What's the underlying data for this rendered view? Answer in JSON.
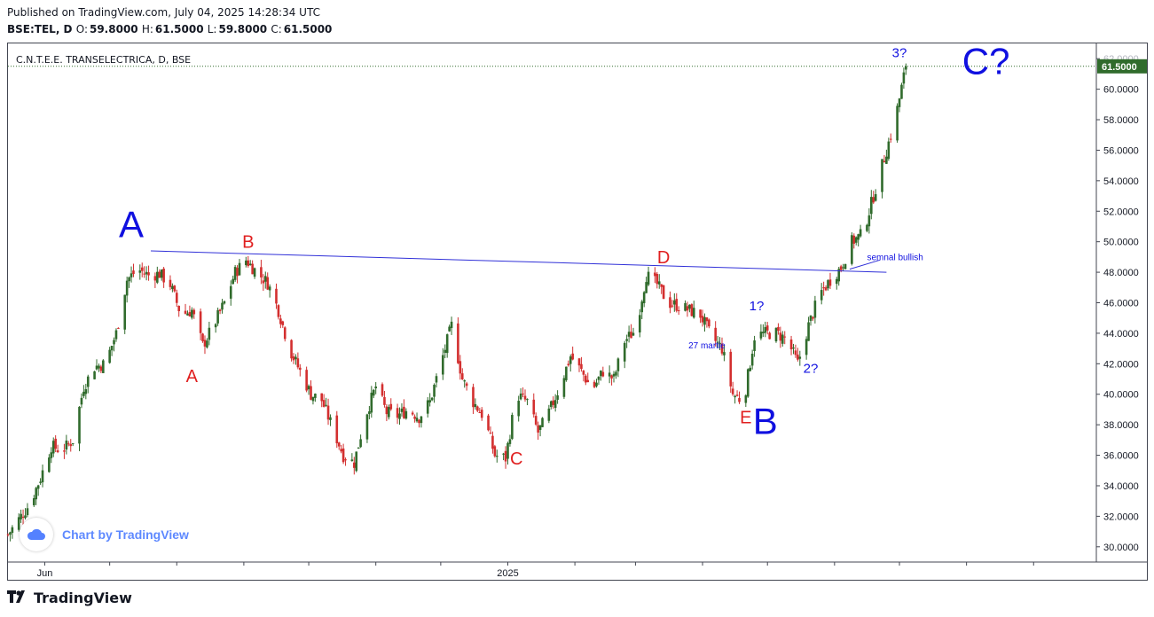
{
  "header": {
    "published": "Published on TradingView.com, July 04, 2025 14:28:34 UTC",
    "symbol": "BSE:TEL, D",
    "o_label": "O:",
    "o_value": "59.8000",
    "h_label": "H:",
    "h_value": "61.5000",
    "l_label": "L:",
    "l_value": "59.8000",
    "c_label": "C:",
    "c_value": "61.5000"
  },
  "chart_title": "C.N.T.E.E. TRANSELECTRICA, D, BSE",
  "watermark": "Chart by TradingView",
  "footer_brand": "TradingView",
  "colors": {
    "up": "#306b2c",
    "down": "#d32f2f",
    "trendline": "#3030d8",
    "wave_blue": "#1010e0",
    "wave_red": "#e02020",
    "last_price_bg": "#306b2c"
  },
  "chart_data": {
    "type": "candlestick",
    "title": "C.N.T.E.E. TRANSELECTRICA, D, BSE",
    "ylim": [
      29.0,
      63.0
    ],
    "y_ticks": [
      "30.0000",
      "32.0000",
      "34.0000",
      "36.0000",
      "38.0000",
      "40.0000",
      "42.0000",
      "44.0000",
      "46.0000",
      "48.0000",
      "50.0000",
      "52.0000",
      "54.0000",
      "56.0000",
      "58.0000",
      "60.0000",
      "62.0000"
    ],
    "x_labels": [
      {
        "label": "Jun",
        "date": "2024-06-01"
      },
      {
        "label": "2025",
        "date": "2025-01-01"
      }
    ],
    "x_range": [
      "2024-05-15",
      "2025-09-30"
    ],
    "last_price": "61.5000",
    "close_path": [
      [
        "2024-05-15",
        30.8
      ],
      [
        "2024-05-20",
        31.8
      ],
      [
        "2024-05-25",
        32.8
      ],
      [
        "2024-05-30",
        34.5
      ],
      [
        "2024-06-04",
        36.6
      ],
      [
        "2024-06-09",
        36.3
      ],
      [
        "2024-06-14",
        37.0
      ],
      [
        "2024-06-19",
        40.5
      ],
      [
        "2024-06-24",
        41.8
      ],
      [
        "2024-06-29",
        42.0
      ],
      [
        "2024-07-04",
        44.0
      ],
      [
        "2024-07-09",
        47.5
      ],
      [
        "2024-07-14",
        48.2
      ],
      [
        "2024-07-19",
        47.8
      ],
      [
        "2024-07-24",
        47.9
      ],
      [
        "2024-07-29",
        47.2
      ],
      [
        "2024-08-03",
        45.2
      ],
      [
        "2024-08-08",
        45.5
      ],
      [
        "2024-08-13",
        43.2
      ],
      [
        "2024-08-18",
        44.5
      ],
      [
        "2024-08-23",
        46.0
      ],
      [
        "2024-08-28",
        48.0
      ],
      [
        "2024-09-02",
        48.8
      ],
      [
        "2024-09-07",
        48.0
      ],
      [
        "2024-09-12",
        47.3
      ],
      [
        "2024-09-17",
        45.5
      ],
      [
        "2024-09-22",
        43.0
      ],
      [
        "2024-09-27",
        41.5
      ],
      [
        "2024-10-02",
        40.0
      ],
      [
        "2024-10-07",
        39.6
      ],
      [
        "2024-10-12",
        37.8
      ],
      [
        "2024-10-17",
        36.0
      ],
      [
        "2024-10-22",
        35.5
      ],
      [
        "2024-10-27",
        38.5
      ],
      [
        "2024-11-01",
        40.5
      ],
      [
        "2024-11-06",
        38.8
      ],
      [
        "2024-11-11",
        38.6
      ],
      [
        "2024-11-16",
        39.0
      ],
      [
        "2024-11-21",
        38.5
      ],
      [
        "2024-11-26",
        39.5
      ],
      [
        "2024-12-01",
        42.0
      ],
      [
        "2024-12-06",
        44.5
      ],
      [
        "2024-12-11",
        41.0
      ],
      [
        "2024-12-16",
        39.5
      ],
      [
        "2024-12-21",
        38.5
      ],
      [
        "2024-12-26",
        36.0
      ],
      [
        "2024-12-31",
        35.8
      ],
      [
        "2025-01-05",
        40.0
      ],
      [
        "2025-01-10",
        39.5
      ],
      [
        "2025-01-15",
        37.5
      ],
      [
        "2025-01-20",
        38.8
      ],
      [
        "2025-01-25",
        40.5
      ],
      [
        "2025-01-30",
        42.5
      ],
      [
        "2025-02-04",
        41.5
      ],
      [
        "2025-02-09",
        40.3
      ],
      [
        "2025-02-14",
        41.5
      ],
      [
        "2025-02-19",
        41.0
      ],
      [
        "2025-02-24",
        43.5
      ],
      [
        "2025-03-01",
        44.2
      ],
      [
        "2025-03-06",
        47.8
      ],
      [
        "2025-03-11",
        47.2
      ],
      [
        "2025-03-16",
        46.0
      ],
      [
        "2025-03-21",
        45.8
      ],
      [
        "2025-03-26",
        45.5
      ],
      [
        "2025-03-31",
        45.2
      ],
      [
        "2025-04-05",
        43.8
      ],
      [
        "2025-04-10",
        43.0
      ],
      [
        "2025-04-15",
        40.0
      ],
      [
        "2025-04-20",
        39.5
      ],
      [
        "2025-04-25",
        43.8
      ],
      [
        "2025-04-30",
        44.0
      ],
      [
        "2025-05-05",
        44.0
      ],
      [
        "2025-05-10",
        43.6
      ],
      [
        "2025-05-15",
        42.0
      ],
      [
        "2025-05-20",
        44.5
      ],
      [
        "2025-05-25",
        46.5
      ],
      [
        "2025-05-30",
        47.5
      ],
      [
        "2025-06-04",
        48.3
      ],
      [
        "2025-06-09",
        50.0
      ],
      [
        "2025-06-14",
        50.5
      ],
      [
        "2025-06-19",
        53.0
      ],
      [
        "2025-06-24",
        55.5
      ],
      [
        "2025-06-29",
        58.0
      ],
      [
        "2025-07-04",
        61.5
      ]
    ],
    "trendline": {
      "from": [
        "2024-07-20",
        49.4
      ],
      "to": [
        "2025-06-25",
        48.0
      ]
    },
    "annotations": [
      {
        "text": "A",
        "date": "2024-07-11",
        "price": 50.3,
        "color": "blue",
        "size": "xl"
      },
      {
        "text": "B",
        "date": "2024-09-03",
        "price": 49.6,
        "color": "red",
        "size": "m"
      },
      {
        "text": "A",
        "date": "2024-08-08",
        "price": 40.8,
        "color": "red",
        "size": "m"
      },
      {
        "text": "C",
        "date": "2025-01-05",
        "price": 35.4,
        "color": "red",
        "size": "m"
      },
      {
        "text": "D",
        "date": "2025-03-14",
        "price": 48.6,
        "color": "red",
        "size": "m"
      },
      {
        "text": "E",
        "date": "2025-04-21",
        "price": 38.1,
        "color": "red",
        "size": "m"
      },
      {
        "text": "B",
        "date": "2025-04-30",
        "price": 37.4,
        "color": "blue",
        "size": "xl"
      },
      {
        "text": "1?",
        "date": "2025-04-26",
        "price": 45.5,
        "color": "blue",
        "size": "s"
      },
      {
        "text": "2?",
        "date": "2025-05-21",
        "price": 41.4,
        "color": "blue",
        "size": "s"
      },
      {
        "text": "3?",
        "date": "2025-07-01",
        "price": 62.1,
        "color": "blue",
        "size": "s"
      },
      {
        "text": "C?",
        "date": "2025-08-10",
        "price": 61.0,
        "color": "blue",
        "size": "xl"
      },
      {
        "text": "27 martie",
        "date": "2025-04-03",
        "price": 43.0,
        "color": "blue",
        "size": "xs"
      },
      {
        "text": "semnal bullish",
        "date": "2025-06-29",
        "price": 48.8,
        "color": "blue",
        "size": "xs"
      }
    ]
  }
}
